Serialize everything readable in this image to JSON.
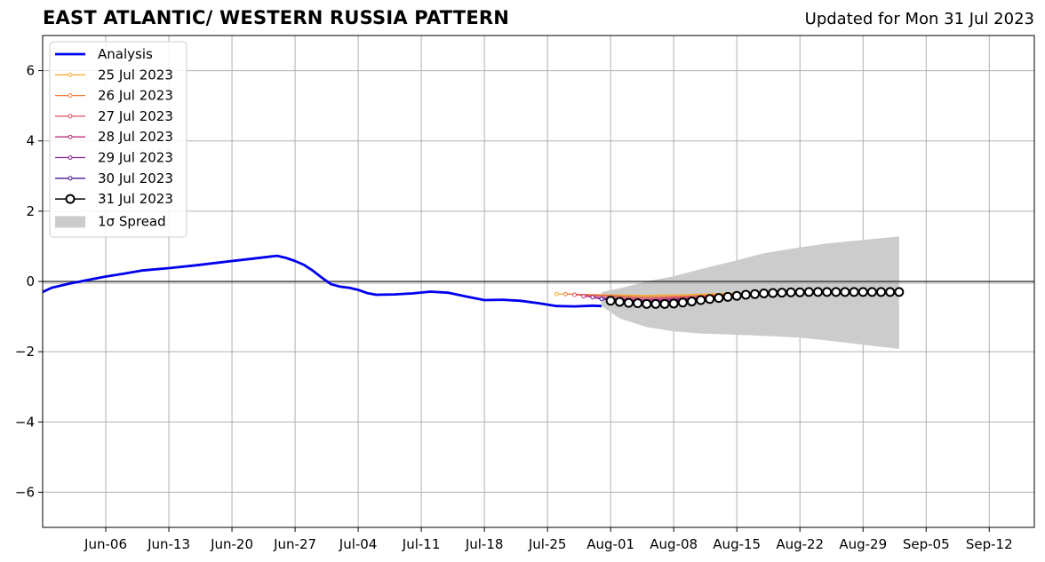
{
  "chart_data": {
    "type": "line",
    "title": "EAST ATLANTIC/ WESTERN RUSSIA PATTERN",
    "subtitle": "Updated for Mon 31 Jul 2023",
    "xlabel": "",
    "ylabel": "",
    "xlim": [
      "2023-05-30",
      "2023-09-17"
    ],
    "ylim": [
      -7,
      7
    ],
    "yticks": [
      -6,
      -4,
      -2,
      0,
      2,
      4,
      6
    ],
    "ytick_labels": [
      "−6",
      "−4",
      "−2",
      "0",
      "2",
      "4",
      "6"
    ],
    "xticks": [
      "2023-06-06",
      "2023-06-13",
      "2023-06-20",
      "2023-06-27",
      "2023-07-04",
      "2023-07-11",
      "2023-07-18",
      "2023-07-25",
      "2023-08-01",
      "2023-08-08",
      "2023-08-15",
      "2023-08-22",
      "2023-08-29",
      "2023-09-05",
      "2023-09-12"
    ],
    "xtick_labels": [
      "Jun-06",
      "Jun-13",
      "Jun-20",
      "Jun-27",
      "Jul-04",
      "Jul-11",
      "Jul-18",
      "Jul-25",
      "Aug-01",
      "Aug-08",
      "Aug-15",
      "Aug-22",
      "Aug-29",
      "Sep-05",
      "Sep-12"
    ],
    "grid": true,
    "legend_position": "top-left",
    "analysis": {
      "name": "Analysis",
      "color": "#0000ee",
      "points": [
        [
          "2023-05-30",
          -0.3
        ],
        [
          "2023-05-31",
          -0.18
        ],
        [
          "2023-06-02",
          -0.06
        ],
        [
          "2023-06-04",
          0.04
        ],
        [
          "2023-06-06",
          0.14
        ],
        [
          "2023-06-08",
          0.22
        ],
        [
          "2023-06-10",
          0.31
        ],
        [
          "2023-06-13",
          0.38
        ],
        [
          "2023-06-16",
          0.46
        ],
        [
          "2023-06-19",
          0.55
        ],
        [
          "2023-06-22",
          0.64
        ],
        [
          "2023-06-24",
          0.7
        ],
        [
          "2023-06-25",
          0.73
        ],
        [
          "2023-06-26",
          0.67
        ],
        [
          "2023-06-27",
          0.58
        ],
        [
          "2023-06-28",
          0.47
        ],
        [
          "2023-06-29",
          0.3
        ],
        [
          "2023-06-30",
          0.1
        ],
        [
          "2023-07-01",
          -0.08
        ],
        [
          "2023-07-02",
          -0.15
        ],
        [
          "2023-07-03",
          -0.18
        ],
        [
          "2023-07-04",
          -0.24
        ],
        [
          "2023-07-05",
          -0.33
        ],
        [
          "2023-07-06",
          -0.38
        ],
        [
          "2023-07-08",
          -0.37
        ],
        [
          "2023-07-10",
          -0.34
        ],
        [
          "2023-07-12",
          -0.29
        ],
        [
          "2023-07-14",
          -0.32
        ],
        [
          "2023-07-16",
          -0.43
        ],
        [
          "2023-07-18",
          -0.53
        ],
        [
          "2023-07-20",
          -0.52
        ],
        [
          "2023-07-22",
          -0.55
        ],
        [
          "2023-07-24",
          -0.62
        ],
        [
          "2023-07-26",
          -0.7
        ],
        [
          "2023-07-28",
          -0.71
        ],
        [
          "2023-07-30",
          -0.69
        ],
        [
          "2023-07-31",
          -0.7
        ]
      ]
    },
    "spread": {
      "name": "1σ Spread",
      "color": "#cccccc",
      "x": [
        "2023-07-31",
        "2023-08-02",
        "2023-08-05",
        "2023-08-08",
        "2023-08-11",
        "2023-08-15",
        "2023-08-18",
        "2023-08-22",
        "2023-08-25",
        "2023-08-29",
        "2023-09-02"
      ],
      "upper": [
        -0.3,
        -0.2,
        0.0,
        0.15,
        0.35,
        0.6,
        0.8,
        0.97,
        1.08,
        1.18,
        1.28
      ],
      "lower": [
        -0.7,
        -1.05,
        -1.3,
        -1.42,
        -1.48,
        -1.52,
        -1.55,
        -1.6,
        -1.68,
        -1.8,
        -1.92
      ]
    },
    "forecasts": [
      {
        "name": "25 Jul 2023",
        "color": "#f6ae37",
        "x": [
          "2023-07-26",
          "2023-07-31",
          "2023-08-05",
          "2023-08-10",
          "2023-08-15",
          "2023-08-20",
          "2023-08-25",
          "2023-08-27"
        ],
        "y": [
          -0.36,
          -0.38,
          -0.4,
          -0.37,
          -0.33,
          -0.28,
          -0.25,
          -0.24
        ]
      },
      {
        "name": "26 Jul 2023",
        "color": "#ee7b3a",
        "x": [
          "2023-07-27",
          "2023-07-31",
          "2023-08-05",
          "2023-08-10",
          "2023-08-15",
          "2023-08-20",
          "2023-08-25",
          "2023-08-28"
        ],
        "y": [
          -0.36,
          -0.39,
          -0.44,
          -0.41,
          -0.35,
          -0.3,
          -0.27,
          -0.26
        ]
      },
      {
        "name": "27 Jul 2023",
        "color": "#d84f64",
        "x": [
          "2023-07-28",
          "2023-07-31",
          "2023-08-05",
          "2023-08-10",
          "2023-08-15",
          "2023-08-20",
          "2023-08-25",
          "2023-08-29"
        ],
        "y": [
          -0.38,
          -0.42,
          -0.48,
          -0.44,
          -0.37,
          -0.31,
          -0.28,
          -0.27
        ]
      },
      {
        "name": "28 Jul 2023",
        "color": "#b9327a",
        "x": [
          "2023-07-29",
          "2023-07-31",
          "2023-08-05",
          "2023-08-10",
          "2023-08-15",
          "2023-08-20",
          "2023-08-25",
          "2023-08-30"
        ],
        "y": [
          -0.42,
          -0.47,
          -0.52,
          -0.47,
          -0.39,
          -0.32,
          -0.29,
          -0.28
        ]
      },
      {
        "name": "29 Jul 2023",
        "color": "#8a1f96",
        "x": [
          "2023-07-30",
          "2023-07-31",
          "2023-08-05",
          "2023-08-10",
          "2023-08-15",
          "2023-08-20",
          "2023-08-25",
          "2023-08-31"
        ],
        "y": [
          -0.45,
          -0.5,
          -0.56,
          -0.5,
          -0.41,
          -0.33,
          -0.3,
          -0.29
        ]
      },
      {
        "name": "30 Jul 2023",
        "color": "#4b1496",
        "x": [
          "2023-07-31",
          "2023-08-05",
          "2023-08-10",
          "2023-08-15",
          "2023-08-20",
          "2023-08-25",
          "2023-09-01"
        ],
        "y": [
          -0.5,
          -0.6,
          -0.53,
          -0.42,
          -0.34,
          -0.31,
          -0.3
        ]
      },
      {
        "name": "31 Jul 2023",
        "color": "#000000",
        "marker": "open-circle",
        "x": [
          "2023-08-01",
          "2023-08-02",
          "2023-08-03",
          "2023-08-04",
          "2023-08-05",
          "2023-08-06",
          "2023-08-07",
          "2023-08-08",
          "2023-08-09",
          "2023-08-10",
          "2023-08-11",
          "2023-08-12",
          "2023-08-13",
          "2023-08-14",
          "2023-08-15",
          "2023-08-16",
          "2023-08-17",
          "2023-08-18",
          "2023-08-19",
          "2023-08-20",
          "2023-08-21",
          "2023-08-22",
          "2023-08-23",
          "2023-08-24",
          "2023-08-25",
          "2023-08-26",
          "2023-08-27",
          "2023-08-28",
          "2023-08-29",
          "2023-08-30",
          "2023-08-31",
          "2023-09-01",
          "2023-09-02"
        ],
        "y": [
          -0.55,
          -0.58,
          -0.61,
          -0.62,
          -0.64,
          -0.64,
          -0.64,
          -0.63,
          -0.6,
          -0.57,
          -0.53,
          -0.5,
          -0.47,
          -0.44,
          -0.41,
          -0.38,
          -0.36,
          -0.34,
          -0.33,
          -0.32,
          -0.31,
          -0.31,
          -0.3,
          -0.3,
          -0.3,
          -0.3,
          -0.3,
          -0.3,
          -0.3,
          -0.3,
          -0.3,
          -0.3,
          -0.3
        ]
      }
    ]
  }
}
